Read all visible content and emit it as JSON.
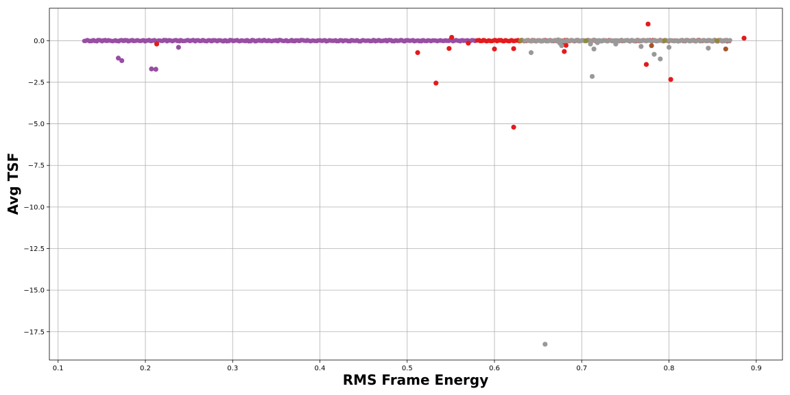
{
  "chart_data": {
    "type": "scatter",
    "xlabel": "RMS Frame Energy",
    "ylabel": "Avg TSF",
    "xlim": [
      0.09,
      0.93
    ],
    "ylim": [
      -19.2,
      1.95
    ],
    "x_ticks": [
      0.1,
      0.2,
      0.3,
      0.4,
      0.5,
      0.6,
      0.7,
      0.8,
      0.9
    ],
    "y_ticks": [
      0.0,
      -2.5,
      -5.0,
      -7.5,
      -10.0,
      -12.5,
      -15.0,
      -17.5
    ],
    "x_tick_labels": [
      "0.1",
      "0.2",
      "0.3",
      "0.4",
      "0.5",
      "0.6",
      "0.7",
      "0.8",
      "0.9"
    ],
    "y_tick_labels": [
      "0.0",
      "−2.5",
      "−5.0",
      "−7.5",
      "−10.0",
      "−12.5",
      "−15.0",
      "−17.5"
    ],
    "grid": true,
    "colors": {
      "purple": "#984ea3",
      "red": "#e41a1c",
      "gray": "#999999",
      "brown": "#a65628",
      "olive": "#8c8c3c"
    },
    "series": [
      {
        "color": "purple",
        "band": [
          0.13,
          0.58,
          0.0
        ],
        "points": [
          [
            0.169,
            -1.05
          ],
          [
            0.173,
            -1.2
          ],
          [
            0.207,
            -1.7
          ],
          [
            0.212,
            -1.72
          ],
          [
            0.238,
            -0.4
          ]
        ]
      },
      {
        "color": "red",
        "band": [
          0.58,
          0.87,
          0.0
        ],
        "points": [
          [
            0.213,
            -0.2
          ],
          [
            0.512,
            -0.72
          ],
          [
            0.533,
            -2.55
          ],
          [
            0.548,
            -0.47
          ],
          [
            0.551,
            0.2
          ],
          [
            0.57,
            -0.15
          ],
          [
            0.6,
            -0.5
          ],
          [
            0.622,
            -0.48
          ],
          [
            0.622,
            -5.2
          ],
          [
            0.678,
            -0.25
          ],
          [
            0.68,
            -0.65
          ],
          [
            0.682,
            -0.28
          ],
          [
            0.774,
            -1.43
          ],
          [
            0.776,
            1.0
          ],
          [
            0.802,
            -2.33
          ],
          [
            0.886,
            0.15
          ]
        ]
      },
      {
        "color": "gray",
        "band": [
          0.63,
          0.87,
          0.0
        ],
        "points": [
          [
            0.642,
            -0.72
          ],
          [
            0.658,
            -18.25
          ],
          [
            0.673,
            0.05
          ],
          [
            0.675,
            -0.15
          ],
          [
            0.677,
            -0.3
          ],
          [
            0.71,
            -0.2
          ],
          [
            0.712,
            -2.15
          ],
          [
            0.714,
            -0.5
          ],
          [
            0.718,
            -0.12
          ],
          [
            0.739,
            -0.2
          ],
          [
            0.768,
            -0.35
          ],
          [
            0.783,
            -0.82
          ],
          [
            0.79,
            -1.1
          ],
          [
            0.8,
            -0.4
          ],
          [
            0.845,
            -0.45
          ]
        ]
      },
      {
        "color": "brown",
        "band": [
          0.0,
          0.0,
          0.0
        ],
        "points": [
          [
            0.78,
            -0.3
          ],
          [
            0.865,
            -0.5
          ]
        ]
      },
      {
        "color": "olive",
        "band": [
          0.0,
          0.0,
          0.0
        ],
        "points": [
          [
            0.63,
            0.0
          ],
          [
            0.705,
            0.0
          ],
          [
            0.795,
            0.0
          ],
          [
            0.855,
            0.0
          ]
        ]
      }
    ]
  }
}
